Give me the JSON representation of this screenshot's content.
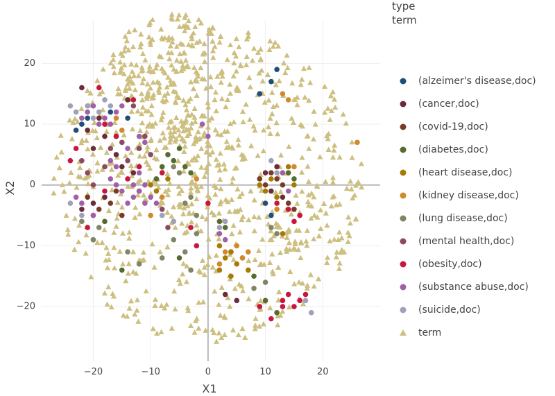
{
  "legend": {
    "title_line1": "type",
    "title_line2": "term",
    "items": [
      {
        "label": "(alzeimer's disease,doc)",
        "color": "#1F4E79",
        "marker": "circle"
      },
      {
        "label": "(cancer,doc)",
        "color": "#6B2C3A",
        "marker": "circle"
      },
      {
        "label": "(covid-19,doc)",
        "color": "#7A3B26",
        "marker": "circle"
      },
      {
        "label": "(diabetes,doc)",
        "color": "#556B2F",
        "marker": "circle"
      },
      {
        "label": "(heart disease,doc)",
        "color": "#A67A05",
        "marker": "circle"
      },
      {
        "label": "(kidney disease,doc)",
        "color": "#D08A2A",
        "marker": "circle"
      },
      {
        "label": "(lung disease,doc)",
        "color": "#7F8565",
        "marker": "circle"
      },
      {
        "label": "(mental health,doc)",
        "color": "#8B4A62",
        "marker": "circle"
      },
      {
        "label": "(obesity,doc)",
        "color": "#C8173F",
        "marker": "circle"
      },
      {
        "label": "(substance abuse,doc)",
        "color": "#A05FA8",
        "marker": "circle"
      },
      {
        "label": "(suicide,doc)",
        "color": "#A0A0B8",
        "marker": "circle"
      },
      {
        "label": "term",
        "color": "#CDBF80",
        "marker": "triangle"
      }
    ]
  },
  "chart_data": {
    "type": "scatter",
    "title": "",
    "xlabel": "X1",
    "ylabel": "X2",
    "xlim": [
      -29,
      30
    ],
    "ylim": [
      -29,
      27
    ],
    "xticks": [
      -20,
      -10,
      0,
      10,
      20
    ],
    "yticks": [
      -20,
      -10,
      0,
      10,
      20
    ],
    "xtick_labels": [
      "−20",
      "−10",
      "0",
      "10",
      "20"
    ],
    "ytick_labels": [
      "−20",
      "−10",
      "0",
      "10",
      "20"
    ],
    "grid": true,
    "legend_position": "right",
    "series": [
      {
        "name": "(alzeimer's disease,doc)",
        "marker": "circle",
        "color": "#1F4E79",
        "points": [
          [
            -23,
            9
          ],
          [
            -22,
            10
          ],
          [
            -21,
            11
          ],
          [
            -17,
            12
          ],
          [
            -14,
            11
          ],
          [
            12,
            19
          ],
          [
            11,
            17
          ],
          [
            9,
            15
          ],
          [
            10,
            -3
          ],
          [
            11,
            -5
          ]
        ]
      },
      {
        "name": "(cancer,doc)",
        "marker": "circle",
        "color": "#6B2C3A",
        "points": [
          [
            -22,
            16
          ],
          [
            -21,
            9
          ],
          [
            -20,
            6
          ],
          [
            -19,
            11
          ],
          [
            -18,
            8
          ],
          [
            -16,
            5
          ],
          [
            -15,
            3
          ],
          [
            -14,
            14
          ],
          [
            -13,
            2
          ],
          [
            -22,
            -4
          ],
          [
            -20,
            -3
          ],
          [
            -18,
            -2
          ],
          [
            -12,
            -1
          ],
          [
            10,
            2
          ],
          [
            11,
            -1
          ],
          [
            12,
            3
          ],
          [
            13,
            -2
          ],
          [
            3,
            -18
          ],
          [
            5,
            -19
          ]
        ]
      },
      {
        "name": "(covid-19,doc)",
        "marker": "circle",
        "color": "#7A3B26",
        "points": [
          [
            -21,
            -2
          ],
          [
            -19,
            -4
          ],
          [
            -17,
            -3
          ],
          [
            -16,
            -1
          ],
          [
            -15,
            -5
          ],
          [
            -20,
            -5
          ],
          [
            9,
            1
          ],
          [
            10,
            0
          ],
          [
            11,
            2
          ],
          [
            12,
            1
          ],
          [
            14,
            -3
          ],
          [
            15,
            -4
          ],
          [
            13,
            0
          ]
        ]
      },
      {
        "name": "(diabetes,doc)",
        "marker": "circle",
        "color": "#556B2F",
        "points": [
          [
            -16,
            8
          ],
          [
            -8,
            3
          ],
          [
            -7,
            5
          ],
          [
            -6,
            4
          ],
          [
            -5,
            6
          ],
          [
            -4,
            3
          ],
          [
            -3,
            2
          ],
          [
            -9,
            1
          ],
          [
            14,
            2
          ],
          [
            15,
            1
          ],
          [
            2,
            -6
          ],
          [
            3,
            -7
          ],
          [
            4,
            -11
          ],
          [
            -5,
            -12
          ],
          [
            -15,
            -14
          ],
          [
            8,
            -15
          ],
          [
            10,
            -19
          ],
          [
            12,
            -21
          ],
          [
            -20,
            -9
          ],
          [
            -18,
            -6
          ]
        ]
      },
      {
        "name": "(heart disease,doc)",
        "marker": "circle",
        "color": "#A67A05",
        "points": [
          [
            9,
            0
          ],
          [
            10,
            -1
          ],
          [
            11,
            1
          ],
          [
            12,
            -2
          ],
          [
            13,
            2
          ],
          [
            14,
            3
          ],
          [
            15,
            0
          ],
          [
            2,
            -10
          ],
          [
            3,
            -12
          ],
          [
            4,
            -11
          ],
          [
            5,
            -13
          ],
          [
            6,
            -12
          ],
          [
            7,
            -14
          ],
          [
            2,
            -14
          ],
          [
            4,
            -15
          ],
          [
            -10,
            0
          ],
          [
            -9,
            -1
          ],
          [
            -7,
            1
          ],
          [
            13,
            -8
          ]
        ]
      },
      {
        "name": "(kidney disease,doc)",
        "marker": "circle",
        "color": "#D08A2A",
        "points": [
          [
            -16,
            11
          ],
          [
            -15,
            9
          ],
          [
            14,
            14
          ],
          [
            13,
            15
          ],
          [
            2,
            -13
          ],
          [
            3,
            -11
          ],
          [
            5,
            -10
          ],
          [
            6,
            -12
          ],
          [
            7,
            -11
          ],
          [
            15,
            3
          ],
          [
            12,
            -4
          ],
          [
            -10,
            -5
          ],
          [
            -8,
            -2
          ],
          [
            26,
            7
          ],
          [
            -2,
            1
          ]
        ]
      },
      {
        "name": "(lung disease,doc)",
        "marker": "circle",
        "color": "#7F8565",
        "points": [
          [
            -22,
            -6
          ],
          [
            -19,
            -7
          ],
          [
            -14,
            -11
          ],
          [
            -12,
            -13
          ],
          [
            -8,
            -12
          ],
          [
            -6,
            -9
          ],
          [
            -4,
            -11
          ],
          [
            -3,
            -14
          ],
          [
            -2,
            -8
          ],
          [
            -6,
            3
          ],
          [
            -5,
            2
          ],
          [
            -4,
            -3
          ],
          [
            -3,
            -2
          ],
          [
            -2,
            -5
          ],
          [
            8,
            -17
          ],
          [
            10,
            -16
          ],
          [
            11,
            -7
          ],
          [
            12,
            -8
          ],
          [
            -20,
            -9
          ]
        ]
      },
      {
        "name": "(mental health,doc)",
        "marker": "circle",
        "color": "#8B4A62",
        "points": [
          [
            -22,
            4
          ],
          [
            -21,
            2
          ],
          [
            -20,
            0
          ],
          [
            -18,
            3
          ],
          [
            -17,
            6
          ],
          [
            -15,
            7
          ],
          [
            -14,
            4
          ],
          [
            -12,
            6
          ],
          [
            -11,
            8
          ],
          [
            -10,
            5
          ],
          [
            -13,
            13
          ],
          [
            -8,
            -4
          ],
          [
            -7,
            -7
          ]
        ]
      },
      {
        "name": "(obesity,doc)",
        "marker": "circle",
        "color": "#C8173F",
        "points": [
          [
            -18,
            10
          ],
          [
            -16,
            8
          ],
          [
            -19,
            16
          ],
          [
            -13,
            14
          ],
          [
            -24,
            4
          ],
          [
            -23,
            6
          ],
          [
            -21,
            -7
          ],
          [
            -18,
            -1
          ],
          [
            -14,
            1
          ],
          [
            -12,
            3
          ],
          [
            -8,
            2
          ],
          [
            -2,
            -10
          ],
          [
            0,
            -3
          ],
          [
            13,
            -19
          ],
          [
            14,
            -18
          ],
          [
            15,
            -20
          ],
          [
            16,
            -19
          ],
          [
            17,
            -18
          ],
          [
            13,
            -20
          ],
          [
            11,
            -22
          ],
          [
            9,
            -20
          ],
          [
            15,
            -6
          ],
          [
            14,
            -4
          ],
          [
            16,
            -5
          ],
          [
            12,
            -3
          ],
          [
            -3,
            -7
          ]
        ]
      },
      {
        "name": "(substance abuse,doc)",
        "marker": "circle",
        "color": "#A05FA8",
        "points": [
          [
            -22,
            11
          ],
          [
            -21,
            12
          ],
          [
            -20,
            13
          ],
          [
            -19,
            10
          ],
          [
            -18,
            11
          ],
          [
            -17,
            10
          ],
          [
            -16,
            12
          ],
          [
            -15,
            13
          ],
          [
            -14,
            6
          ],
          [
            -13,
            -2
          ],
          [
            -13,
            0
          ],
          [
            -12,
            -1
          ],
          [
            -11,
            0
          ],
          [
            -14,
            -3
          ],
          [
            -15,
            -1
          ],
          [
            -16,
            0
          ],
          [
            -17,
            1
          ],
          [
            -12,
            2
          ],
          [
            -11,
            -3
          ],
          [
            -10,
            -2
          ],
          [
            -9,
            -3
          ],
          [
            -20,
            -5
          ],
          [
            -17,
            4
          ],
          [
            -16,
            3
          ],
          [
            -11,
            7
          ],
          [
            -12,
            8
          ],
          [
            -22,
            -3
          ],
          [
            -23,
            -2
          ],
          [
            -1,
            10
          ],
          [
            0,
            8
          ],
          [
            2,
            -8
          ],
          [
            3,
            -9
          ],
          [
            13,
            2
          ],
          [
            14,
            -1
          ]
        ]
      },
      {
        "name": "(suicide,doc)",
        "marker": "circle",
        "color": "#A0A0B8",
        "points": [
          [
            -24,
            13
          ],
          [
            -23,
            12
          ],
          [
            -21,
            13
          ],
          [
            -20,
            11
          ],
          [
            -19,
            12
          ],
          [
            -18,
            14
          ],
          [
            -17,
            13
          ],
          [
            -24,
            -3
          ],
          [
            -22,
            -5
          ],
          [
            -8,
            -5
          ],
          [
            -6,
            -6
          ],
          [
            2,
            -7
          ],
          [
            3,
            -6
          ],
          [
            17,
            -19
          ],
          [
            18,
            -21
          ],
          [
            12,
            2
          ],
          [
            11,
            4
          ]
        ]
      },
      {
        "name": "term",
        "marker": "triangle",
        "color": "#CDBF80",
        "generated": true,
        "count": 950
      }
    ]
  }
}
